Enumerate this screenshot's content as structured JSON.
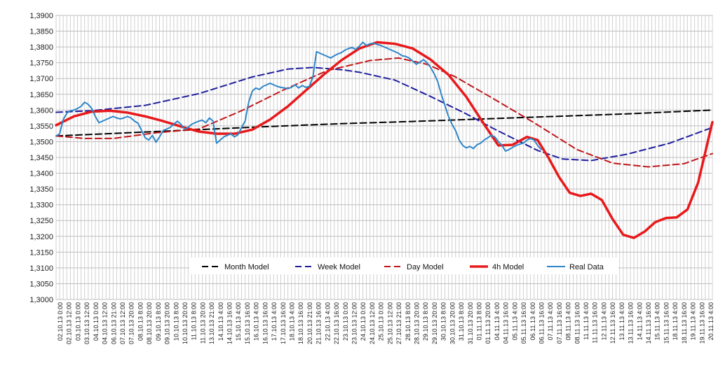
{
  "chart_data": {
    "type": "line",
    "title": "",
    "xlabel": "",
    "ylabel": "",
    "ylim": [
      1.3,
      1.39
    ],
    "y_ticks": [
      "1,3000",
      "1,3050",
      "1,3100",
      "1,3150",
      "1,3200",
      "1,3250",
      "1,3300",
      "1,3350",
      "1,3400",
      "1,3450",
      "1,3500",
      "1,3550",
      "1,3600",
      "1,3650",
      "1,3700",
      "1,3750",
      "1,3800",
      "1,3850",
      "1,3900"
    ],
    "x_range": [
      0,
      184
    ],
    "x_ticks": [
      "02.10.13 0:00",
      "02.10.13 12:00",
      "03.10.13 0:00",
      "03.10.13 12:00",
      "04.10.13 0:00",
      "04.10.13 12:00",
      "06.10.13 21:00",
      "07.10.13 12:00",
      "07.10.13 20:00",
      "08.10.13 8:00",
      "08.10.13 20:00",
      "09.10.13 8:00",
      "09.10.13 20:00",
      "10.10.13 8:00",
      "10.10.13 20:00",
      "11.10.13 8:00",
      "11.10.13 20:00",
      "13.10.13 21:00",
      "14.10.13 4:00",
      "14.10.13 16:00",
      "15.10.13 4:00",
      "15.10.13 16:00",
      "16.10.13 4:00",
      "16.10.13 16:00",
      "17.10.13 4:00",
      "17.10.13 16:00",
      "18.10.13 4:00",
      "18.10.13 16:00",
      "20.10.13 21:00",
      "21.10.13 16:00",
      "22.10.13 4:00",
      "22.10.13 16:00",
      "23.10.13 0:00",
      "23.10.13 12:00",
      "24.10.13 0:00",
      "24.10.13 12:00",
      "25.10.13 0:00",
      "25.10.13 12:00",
      "27.10.13 21:00",
      "28.10.13 8:00",
      "28.10.13 20:00",
      "29.10.13 8:00",
      "29.10.13 20:00",
      "30.10.13 8:00",
      "30.10.13 20:00",
      "31.10.13 8:00",
      "31.10.13 20:00",
      "01.11.13 8:00",
      "01.11.13 20:00",
      "04.11.13 4:00",
      "04.11.13 16:00",
      "05.11.13 4:00",
      "05.11.13 16:00",
      "06.11.13 4:00",
      "06.11.13 16:00",
      "07.11.13 4:00",
      "07.11.13 16:00",
      "08.11.13 4:00",
      "08.11.13 16:00",
      "11.11.13 4:00",
      "11.11.13 16:00",
      "12.11.13 4:00",
      "12.11.13 16:00",
      "13.11.13 4:00",
      "13.11.13 16:00",
      "14.11.13 4:00",
      "14.11.13 16:00",
      "15.11.13 4:00",
      "15.11.13 16:00",
      "18.11.13 4:00",
      "18.11.13 16:00",
      "19.11.13 4:00",
      "19.11.13 16:00",
      "20.11.13 4:00"
    ],
    "grid": true,
    "legend_position": "bottom-center",
    "series": [
      {
        "name": "Month Model",
        "color": "#000000",
        "style": "dashed",
        "width": 2,
        "x": [
          0,
          20,
          40,
          60,
          80,
          100,
          120,
          140,
          160,
          184
        ],
        "y": [
          1.3518,
          1.3528,
          1.3538,
          1.3548,
          1.3557,
          1.3564,
          1.3572,
          1.358,
          1.3588,
          1.36
        ]
      },
      {
        "name": "Week Model",
        "color": "#1f1f9e",
        "style": "dashed",
        "width": 2,
        "x": [
          0,
          10,
          25,
          40,
          55,
          65,
          72,
          80,
          85,
          95,
          105,
          115,
          122,
          130,
          135,
          142,
          150,
          160,
          172,
          184
        ],
        "y": [
          1.3593,
          1.3598,
          1.3615,
          1.3652,
          1.3705,
          1.373,
          1.3735,
          1.3728,
          1.372,
          1.3695,
          1.3643,
          1.3588,
          1.3545,
          1.35,
          1.3472,
          1.3445,
          1.344,
          1.346,
          1.3495,
          1.3545
        ]
      },
      {
        "name": "Day Model",
        "color": "#c0171b",
        "style": "dashed",
        "width": 2,
        "x": [
          0,
          8,
          16,
          28,
          40,
          52,
          64,
          76,
          88,
          96,
          104,
          112,
          122,
          134,
          146,
          156,
          166,
          176,
          184
        ],
        "y": [
          1.3518,
          1.351,
          1.351,
          1.3528,
          1.354,
          1.3598,
          1.3665,
          1.3725,
          1.3757,
          1.3765,
          1.3745,
          1.3705,
          1.364,
          1.356,
          1.3475,
          1.3432,
          1.342,
          1.343,
          1.3462
        ]
      },
      {
        "name": "4h Model",
        "color": "#e8191b",
        "style": "solid",
        "width": 3.5,
        "x": [
          0,
          5,
          10,
          15,
          20,
          25,
          30,
          35,
          40,
          45,
          50,
          55,
          60,
          65,
          70,
          75,
          80,
          85,
          90,
          95,
          100,
          105,
          110,
          115,
          120,
          124,
          128,
          132,
          135,
          138,
          141,
          144,
          147,
          150,
          153,
          156,
          159,
          162,
          165,
          168,
          171,
          174,
          177,
          180,
          184
        ],
        "y": [
          1.3552,
          1.358,
          1.3595,
          1.3598,
          1.3592,
          1.358,
          1.3565,
          1.3548,
          1.3532,
          1.3525,
          1.3525,
          1.3538,
          1.357,
          1.3612,
          1.3662,
          1.3712,
          1.3758,
          1.3795,
          1.3815,
          1.381,
          1.3795,
          1.376,
          1.3712,
          1.3642,
          1.3555,
          1.3488,
          1.349,
          1.3515,
          1.3505,
          1.345,
          1.3388,
          1.3338,
          1.3328,
          1.3335,
          1.3315,
          1.3255,
          1.3205,
          1.3195,
          1.3215,
          1.3245,
          1.3258,
          1.326,
          1.3285,
          1.337,
          1.3562
        ]
      },
      {
        "name": "Real Data",
        "color": "#2e86c8",
        "style": "solid",
        "width": 2,
        "x": [
          0,
          1,
          2,
          3,
          4,
          5,
          6,
          7,
          8,
          9,
          10,
          11,
          12,
          13,
          14,
          15,
          16,
          17,
          18,
          19,
          20,
          21,
          22,
          23,
          24,
          25,
          26,
          27,
          28,
          29,
          30,
          31,
          32,
          33,
          34,
          35,
          36,
          37,
          38,
          39,
          40,
          41,
          42,
          43,
          44,
          45,
          46,
          47,
          48,
          49,
          50,
          51,
          52,
          53,
          54,
          55,
          56,
          57,
          58,
          59,
          60,
          61,
          62,
          63,
          64,
          65,
          66,
          67,
          68,
          69,
          70,
          71,
          72,
          73,
          74,
          75,
          76,
          77,
          78,
          79,
          80,
          81,
          82,
          83,
          84,
          85,
          86,
          87,
          88,
          89,
          90,
          91,
          92,
          93,
          94,
          95,
          96,
          97,
          98,
          99,
          100,
          101,
          102,
          103,
          104,
          105,
          106,
          107,
          108,
          109,
          110,
          111,
          112,
          113,
          114,
          115,
          116,
          117,
          118,
          119,
          120,
          121,
          122,
          123,
          124,
          125,
          126,
          127,
          128,
          129,
          130,
          131,
          132,
          133,
          134,
          135,
          136
        ],
        "y": [
          1.3518,
          1.3525,
          1.357,
          1.359,
          1.3598,
          1.36,
          1.3605,
          1.3612,
          1.3625,
          1.3618,
          1.3605,
          1.358,
          1.356,
          1.3565,
          1.357,
          1.3575,
          1.358,
          1.3575,
          1.3572,
          1.3575,
          1.358,
          1.3575,
          1.3565,
          1.3558,
          1.3535,
          1.3512,
          1.3505,
          1.352,
          1.3498,
          1.3515,
          1.3535,
          1.354,
          1.3545,
          1.3555,
          1.3565,
          1.3555,
          1.354,
          1.3545,
          1.3555,
          1.356,
          1.3565,
          1.3568,
          1.356,
          1.3575,
          1.3565,
          1.3495,
          1.3505,
          1.3515,
          1.352,
          1.3525,
          1.3515,
          1.3522,
          1.3545,
          1.3565,
          1.3625,
          1.366,
          1.367,
          1.3665,
          1.3675,
          1.368,
          1.3685,
          1.368,
          1.3675,
          1.3672,
          1.367,
          1.3668,
          1.3672,
          1.368,
          1.367,
          1.3678,
          1.3672,
          1.3675,
          1.3705,
          1.3785,
          1.378,
          1.3775,
          1.377,
          1.3765,
          1.3772,
          1.3778,
          1.3782,
          1.379,
          1.3795,
          1.3798,
          1.3792,
          1.3802,
          1.3815,
          1.3805,
          1.381,
          1.3812,
          1.3808,
          1.3805,
          1.38,
          1.3795,
          1.379,
          1.3785,
          1.378,
          1.3772,
          1.377,
          1.3765,
          1.3755,
          1.3745,
          1.3752,
          1.376,
          1.375,
          1.3735,
          1.3715,
          1.369,
          1.365,
          1.3615,
          1.358,
          1.3555,
          1.3535,
          1.3505,
          1.3488,
          1.348,
          1.3485,
          1.3478,
          1.349,
          1.3495,
          1.3505,
          1.3512,
          1.352,
          1.3515,
          1.35,
          1.3488,
          1.347,
          1.3475,
          1.3482,
          1.3488,
          1.3492,
          1.3495,
          1.3505,
          1.351,
          1.3505,
          1.3488,
          1.3475
        ]
      }
    ]
  }
}
